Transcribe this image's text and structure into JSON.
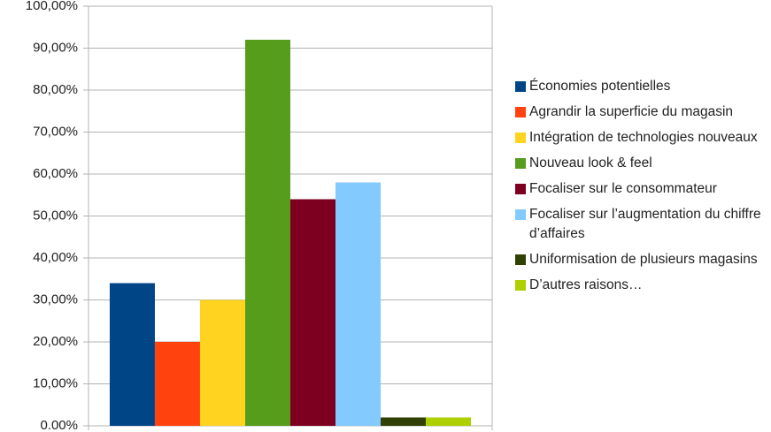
{
  "chart_data": {
    "type": "bar",
    "categories": [
      null
    ],
    "series": [
      {
        "name": "Économies potentielles",
        "color": "#004586",
        "values": [
          34
        ]
      },
      {
        "name": "Agrandir la superficie du magasin",
        "color": "#ff420e",
        "values": [
          20
        ]
      },
      {
        "name": "Intégration de technologies nouveaux",
        "color": "#ffd320",
        "values": [
          30
        ]
      },
      {
        "name": "Nouveau look & feel",
        "color": "#579d1c",
        "values": [
          92
        ]
      },
      {
        "name": "Focaliser sur le consommateur",
        "color": "#7e0021",
        "values": [
          54
        ]
      },
      {
        "name": "Focaliser sur l’augmentation du chiffre d’affaires",
        "color": "#83caff",
        "values": [
          58
        ]
      },
      {
        "name": "Uniformisation de plusieurs magasins",
        "color": "#314004",
        "values": [
          2
        ]
      },
      {
        "name": "D’autres raisons…",
        "color": "#aecf00",
        "values": [
          2
        ]
      }
    ],
    "ylim": [
      0,
      100
    ],
    "yticks": [
      {
        "value": 0,
        "label": "0.00%"
      },
      {
        "value": 10,
        "label": "10,00%"
      },
      {
        "value": 20,
        "label": "20,00%"
      },
      {
        "value": 30,
        "label": "30,00%"
      },
      {
        "value": 40,
        "label": "40,00%"
      },
      {
        "value": 50,
        "label": "50,00%"
      },
      {
        "value": 60,
        "label": "60,00%"
      },
      {
        "value": 70,
        "label": "70,00%"
      },
      {
        "value": 80,
        "label": "80,00%"
      },
      {
        "value": 90,
        "label": "90,00%"
      },
      {
        "value": 100,
        "label": "100,00%"
      }
    ],
    "grid": true,
    "legend": "right"
  }
}
